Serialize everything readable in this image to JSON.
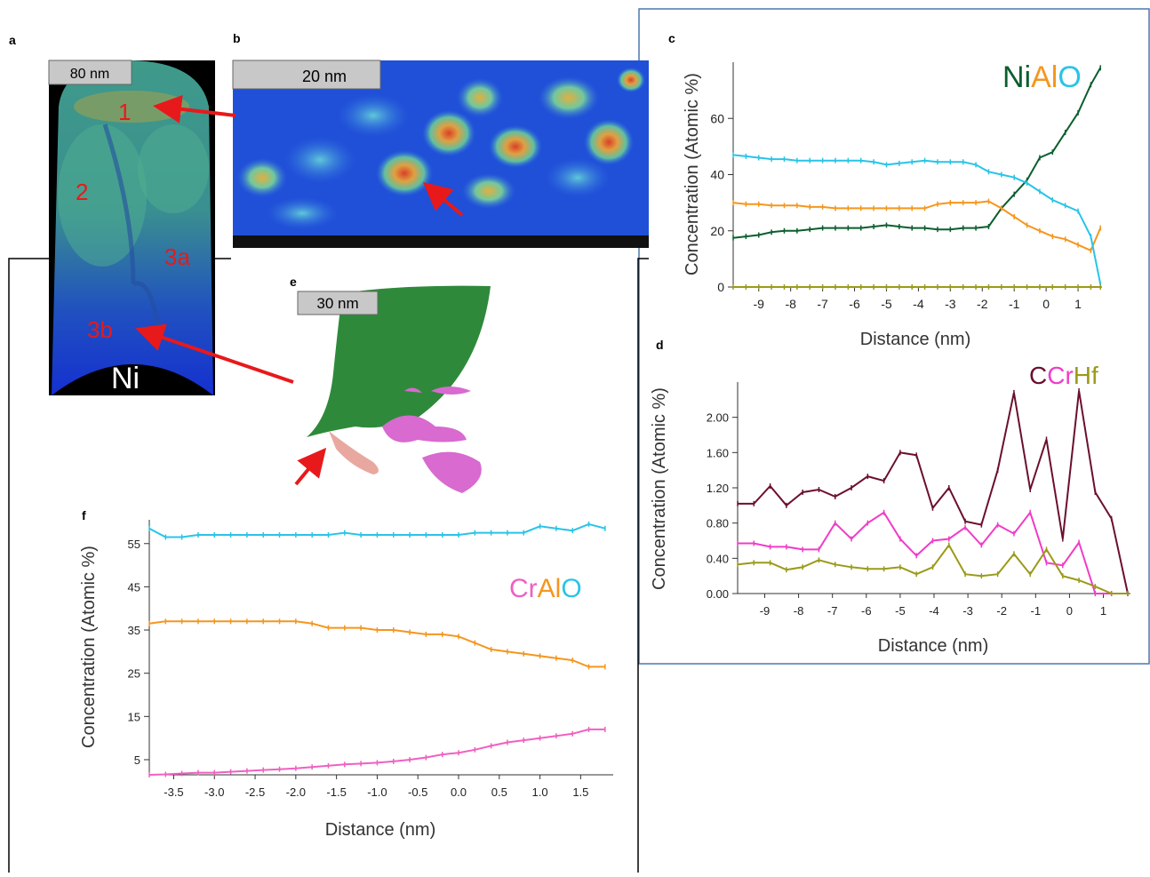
{
  "panels": {
    "a": {
      "letter": "a",
      "scale": "80 nm",
      "regions": [
        "1",
        "2",
        "3a",
        "3b"
      ],
      "base": "Ni"
    },
    "b": {
      "letter": "b",
      "scale": "20 nm"
    },
    "e": {
      "letter": "e",
      "scale": "30 nm"
    }
  },
  "chart_data": [
    {
      "type": "line",
      "letter": "c",
      "xlabel": "Distance (nm)",
      "ylabel": "Concentration (Atomic %)",
      "x": [
        -9.8,
        -9.4,
        -9.0,
        -8.6,
        -8.2,
        -7.8,
        -7.4,
        -7.0,
        -6.6,
        -6.2,
        -5.8,
        -5.4,
        -5.0,
        -4.6,
        -4.2,
        -3.8,
        -3.4,
        -3.0,
        -2.6,
        -2.2,
        -1.8,
        -1.4,
        -1.0,
        -0.6,
        -0.2,
        0.2,
        0.6,
        1.0,
        1.4,
        1.7
      ],
      "series": [
        {
          "name": "Ni",
          "color": "#0b5e2e",
          "values": [
            17.5,
            18,
            18.5,
            19.5,
            20,
            20,
            20.5,
            21,
            21,
            21,
            21,
            21.5,
            22,
            21.5,
            21,
            21,
            20.5,
            20.5,
            21,
            21,
            21.5,
            28,
            33,
            38,
            46,
            48,
            55,
            62,
            72,
            78
          ]
        },
        {
          "name": "Al",
          "color": "#f5961e",
          "values": [
            30,
            29.5,
            29.5,
            29,
            29,
            29,
            28.5,
            28.5,
            28,
            28,
            28,
            28,
            28,
            28,
            28,
            28,
            29.5,
            30,
            30,
            30,
            30.5,
            28,
            25,
            22,
            20,
            18,
            17,
            15,
            13,
            21
          ]
        },
        {
          "name": "O",
          "color": "#29c4e8",
          "values": [
            47,
            46.5,
            46,
            45.5,
            45.5,
            45,
            45,
            45,
            45,
            45,
            45,
            44.5,
            43.5,
            44,
            44.5,
            45,
            44.5,
            44.5,
            44.5,
            43.5,
            41,
            40,
            39,
            37,
            34,
            31,
            29,
            27,
            18,
            1
          ]
        },
        {
          "color": "#9a9a1a",
          "values": [
            0,
            0,
            0,
            0,
            0,
            0,
            0,
            0,
            0,
            0,
            0,
            0,
            0,
            0,
            0,
            0,
            0,
            0,
            0,
            0,
            0,
            0,
            0,
            0,
            0,
            0,
            0,
            0,
            0,
            0
          ]
        }
      ],
      "xlim": [
        -9.8,
        1.75
      ],
      "ylim": [
        0,
        80
      ],
      "xticks": [
        -9,
        -8,
        -7,
        -6,
        -5,
        -4,
        -3,
        -2,
        -1,
        0,
        1
      ],
      "yticks": [
        0,
        20,
        40,
        60
      ]
    },
    {
      "type": "line",
      "letter": "d",
      "xlabel": "Distance (nm)",
      "ylabel": "Concentration (Atomic %)",
      "x": [
        -9.8,
        -9.32,
        -8.84,
        -8.36,
        -7.88,
        -7.4,
        -6.92,
        -6.44,
        -5.96,
        -5.48,
        -5.0,
        -4.52,
        -4.04,
        -3.56,
        -3.08,
        -2.6,
        -2.12,
        -1.64,
        -1.16,
        -0.68,
        -0.2,
        0.28,
        0.76,
        1.24,
        1.72
      ],
      "series": [
        {
          "name": "C",
          "color": "#6b0f2e",
          "values": [
            1.02,
            1.02,
            1.22,
            1.0,
            1.15,
            1.18,
            1.1,
            1.2,
            1.33,
            1.28,
            1.6,
            1.57,
            0.97,
            1.2,
            0.82,
            0.78,
            1.4,
            2.28,
            1.18,
            1.75,
            0.62,
            2.3,
            1.15,
            0.85,
            0
          ]
        },
        {
          "name": "Cr",
          "color": "#f03cc8",
          "values": [
            0.57,
            0.57,
            0.53,
            0.53,
            0.5,
            0.5,
            0.8,
            0.62,
            0.8,
            0.92,
            0.62,
            0.43,
            0.6,
            0.62,
            0.75,
            0.55,
            0.78,
            0.68,
            0.92,
            0.35,
            0.32,
            0.58,
            0,
            0,
            0
          ]
        },
        {
          "name": "Hf",
          "color": "#9a9a1a",
          "values": [
            0.33,
            0.35,
            0.35,
            0.27,
            0.3,
            0.38,
            0.33,
            0.3,
            0.28,
            0.28,
            0.3,
            0.22,
            0.3,
            0.55,
            0.22,
            0.2,
            0.22,
            0.45,
            0.22,
            0.5,
            0.2,
            0.15,
            0.08,
            0,
            0
          ]
        }
      ],
      "xlim": [
        -9.8,
        1.8
      ],
      "ylim": [
        0,
        2.4
      ],
      "xticks": [
        -9,
        -8,
        -7,
        -6,
        -5,
        -4,
        -3,
        -2,
        -1,
        0,
        1
      ],
      "yticks": [
        {
          "value": 0,
          "label": "0.00"
        },
        {
          "value": 0.4,
          "label": "0.40"
        },
        {
          "value": 0.8,
          "label": "0.80"
        },
        {
          "value": 1.2,
          "label": "1.20"
        },
        {
          "value": 1.6,
          "label": "1.60"
        },
        {
          "value": 2,
          "label": "2.00"
        }
      ]
    },
    {
      "type": "line",
      "letter": "f",
      "xlabel": "Distance (nm)",
      "ylabel": "Concentration (Atomic %)",
      "x": [
        -3.8,
        -3.6,
        -3.4,
        -3.2,
        -3.0,
        -2.8,
        -2.6,
        -2.4,
        -2.2,
        -2.0,
        -1.8,
        -1.6,
        -1.4,
        -1.2,
        -1.0,
        -0.8,
        -0.6,
        -0.4,
        -0.2,
        0,
        0.2,
        0.4,
        0.6,
        0.8,
        1.0,
        1.2,
        1.4,
        1.6,
        1.8
      ],
      "series": [
        {
          "name": "Cr",
          "color": "#f060c0",
          "values": [
            1.5,
            1.6,
            1.8,
            2,
            2,
            2.2,
            2.4,
            2.6,
            2.8,
            3,
            3.3,
            3.6,
            3.9,
            4.1,
            4.3,
            4.6,
            5,
            5.5,
            6.2,
            6.6,
            7.3,
            8.2,
            9,
            9.5,
            10,
            10.5,
            11,
            12,
            12
          ]
        },
        {
          "name": "Al",
          "color": "#f5961e",
          "values": [
            36.5,
            37,
            37,
            37,
            37,
            37,
            37,
            37,
            37,
            37,
            36.5,
            35.5,
            35.5,
            35.5,
            35,
            35,
            34.5,
            34,
            34,
            33.5,
            32,
            30.5,
            30,
            29.5,
            29,
            28.5,
            28,
            26.5,
            26.5
          ]
        },
        {
          "name": "O",
          "color": "#29c4e8",
          "values": [
            58.5,
            56.5,
            56.5,
            57,
            57,
            57,
            57,
            57,
            57,
            57,
            57,
            57,
            57.5,
            57,
            57,
            57,
            57,
            57,
            57,
            57,
            57.5,
            57.5,
            57.5,
            57.5,
            59,
            58.5,
            58,
            59.5,
            58.5
          ]
        }
      ],
      "xlim": [
        -3.8,
        1.9
      ],
      "ylim": [
        1.5,
        60.5
      ],
      "xticks": [
        -3.5,
        {
          "value": -3,
          "label": "-3.0"
        },
        -2.5,
        {
          "value": -2,
          "label": "-2.0"
        },
        -1.5,
        {
          "value": -1,
          "label": "-1.0"
        },
        -0.5,
        {
          "value": 0,
          "label": "0.0"
        },
        0.5,
        {
          "value": 1,
          "label": "1.0"
        },
        1.5
      ],
      "yticks": [
        5,
        15,
        25,
        35,
        45,
        55
      ]
    }
  ]
}
